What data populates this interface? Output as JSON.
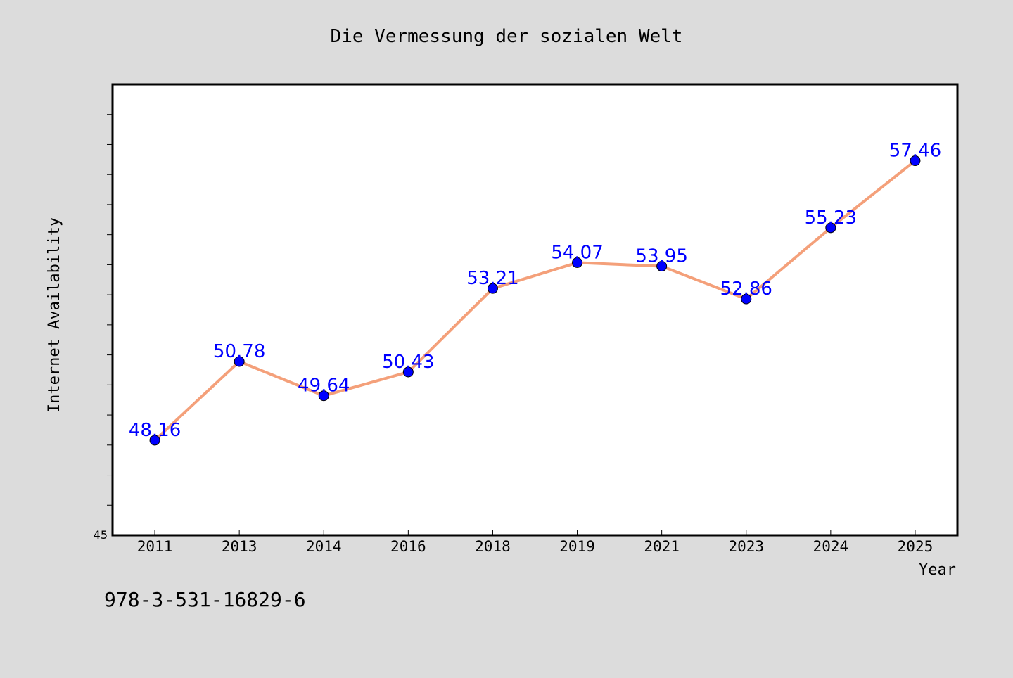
{
  "chart_data": {
    "type": "line",
    "title": "Die Vermessung der sozialen Welt",
    "xlabel": "Year",
    "ylabel": "Internet Availability",
    "categories": [
      "2011",
      "2013",
      "2014",
      "2016",
      "2018",
      "2019",
      "2021",
      "2023",
      "2024",
      "2025"
    ],
    "series": [
      {
        "values": [
          48.16,
          50.78,
          49.64,
          50.43,
          53.21,
          54.07,
          53.95,
          52.86,
          55.23,
          57.46
        ]
      }
    ],
    "ylim": [
      45,
      60
    ],
    "y_tick_labels": [
      "45"
    ],
    "grid": false,
    "colors": {
      "line": "#f4a07a",
      "marker": "#0000ff",
      "label": "#0000ff",
      "background": "#dcdcdc",
      "plot": "#ffffff"
    }
  },
  "footer": {
    "isbn": "978-3-531-16829-6"
  }
}
